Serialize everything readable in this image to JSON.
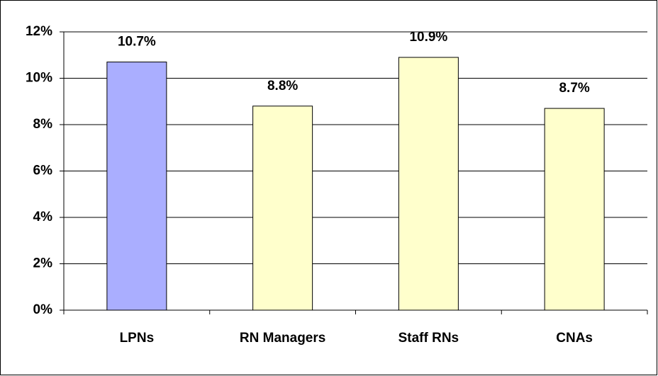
{
  "chart_data": {
    "type": "bar",
    "categories": [
      "LPNs",
      "RN Managers",
      "Staff RNs",
      "CNAs"
    ],
    "values": [
      10.7,
      8.8,
      10.9,
      8.7
    ],
    "value_labels": [
      "10.7%",
      "8.8%",
      "10.9%",
      "8.7%"
    ],
    "colors": [
      "#aaaeff",
      "#ffffcc",
      "#ffffcc",
      "#ffffcc"
    ],
    "ylim": [
      0,
      12
    ],
    "yticks": [
      {
        "value": 0,
        "label": "0%"
      },
      {
        "value": 2,
        "label": "2%"
      },
      {
        "value": 4,
        "label": "4%"
      },
      {
        "value": 6,
        "label": "6%"
      },
      {
        "value": 8,
        "label": "8%"
      },
      {
        "value": 10,
        "label": "10%"
      },
      {
        "value": 12,
        "label": "12%"
      }
    ],
    "grid": true
  }
}
